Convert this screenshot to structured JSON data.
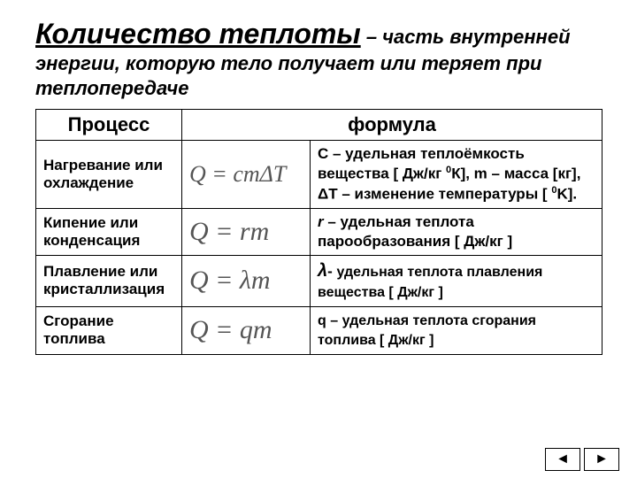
{
  "title": {
    "main": "Количество теплоты",
    "dash": " – ",
    "cont": "часть внутренней энергии, которую тело получает или теряет при теплопередаче"
  },
  "headers": {
    "process": "Процесс",
    "formula": "формула"
  },
  "rows": [
    {
      "process": "Нагревание или охлаждение",
      "formula_html": "Q = cmΔT",
      "desc_parts": {
        "p1": "С – удельная теплоёмкость вещества [ Дж/кг ",
        "sup1": "0",
        "p2": "К], m – масса [кг],  ΔT – изменение температуры [ ",
        "sup2": "0",
        "p3": "K]."
      }
    },
    {
      "process": "Кипение или конденсация",
      "formula_html": "Q = rm",
      "desc_parts": {
        "sym": "r",
        "rest": " – удельная теплота парообразования [ Дж/кг ]"
      }
    },
    {
      "process": "Плавление или кристаллизация",
      "formula_html": "Q = λm",
      "desc_parts": {
        "sym": "λ",
        "dash": "- ",
        "rest": "удельная теплота плавления вещества [ Дж/кг ]"
      }
    },
    {
      "process": "Сгорание топлива",
      "formula_html": "Q = qm",
      "desc_parts": {
        "sym": "q",
        "rest": " – удельная теплота сгорания топлива [ Дж/кг ]"
      }
    }
  ],
  "nav": {
    "prev": "◄",
    "next": "►"
  }
}
